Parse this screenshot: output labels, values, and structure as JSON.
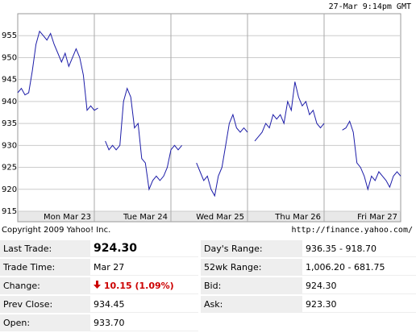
{
  "timestamp": "27-Mar 9:14pm GMT",
  "copyright": "Copyright 2009 Yahoo! Inc.",
  "source_url": "http://finance.yahoo.com/",
  "chart_data": {
    "type": "line",
    "color": "#1c1ca8",
    "grid": true,
    "day_labels": [
      "Mon Mar 23",
      "Tue Mar 24",
      "Wed Mar 25",
      "Thu Mar 26",
      "Fri Mar 27"
    ],
    "ylim": [
      915,
      960
    ],
    "yticks": [
      915,
      920,
      925,
      930,
      935,
      940,
      945,
      950,
      955
    ],
    "values": [
      942,
      943,
      941.5,
      942,
      947,
      953,
      956,
      955,
      954,
      955.5,
      953,
      951,
      949,
      951,
      948,
      950,
      952,
      950,
      946,
      938,
      939,
      938,
      938.5,
      null,
      931,
      929,
      930,
      929,
      930,
      940,
      943,
      941,
      934,
      935,
      927,
      926,
      920,
      922,
      923,
      922,
      923,
      925,
      929,
      930,
      929,
      930,
      null,
      null,
      null,
      926,
      924,
      922,
      923,
      920,
      918.5,
      923,
      925,
      930,
      935,
      937,
      934,
      933,
      934,
      933,
      null,
      931,
      932,
      933,
      935,
      934,
      937,
      936,
      937,
      935,
      940,
      938,
      944.5,
      941,
      939,
      940,
      937,
      938,
      935,
      934,
      935,
      null,
      null,
      null,
      null,
      933.5,
      934,
      935.5,
      933,
      926,
      925,
      923,
      920,
      923,
      922,
      924,
      923,
      922,
      920.5,
      923,
      924,
      923
    ]
  },
  "quote": {
    "left": [
      [
        "Last Trade:",
        "924.30"
      ],
      [
        "Trade Time:",
        "Mar 27"
      ],
      [
        "Change:",
        "10.15 (1.09%)"
      ],
      [
        "Prev Close:",
        "934.45"
      ],
      [
        "Open:",
        "933.70"
      ]
    ],
    "right": [
      [
        "Day's Range:",
        "936.35 - 918.70"
      ],
      [
        "52wk Range:",
        "1,006.20 - 681.75"
      ],
      [
        "Bid:",
        "924.30"
      ],
      [
        "Ask:",
        "923.30"
      ]
    ]
  }
}
